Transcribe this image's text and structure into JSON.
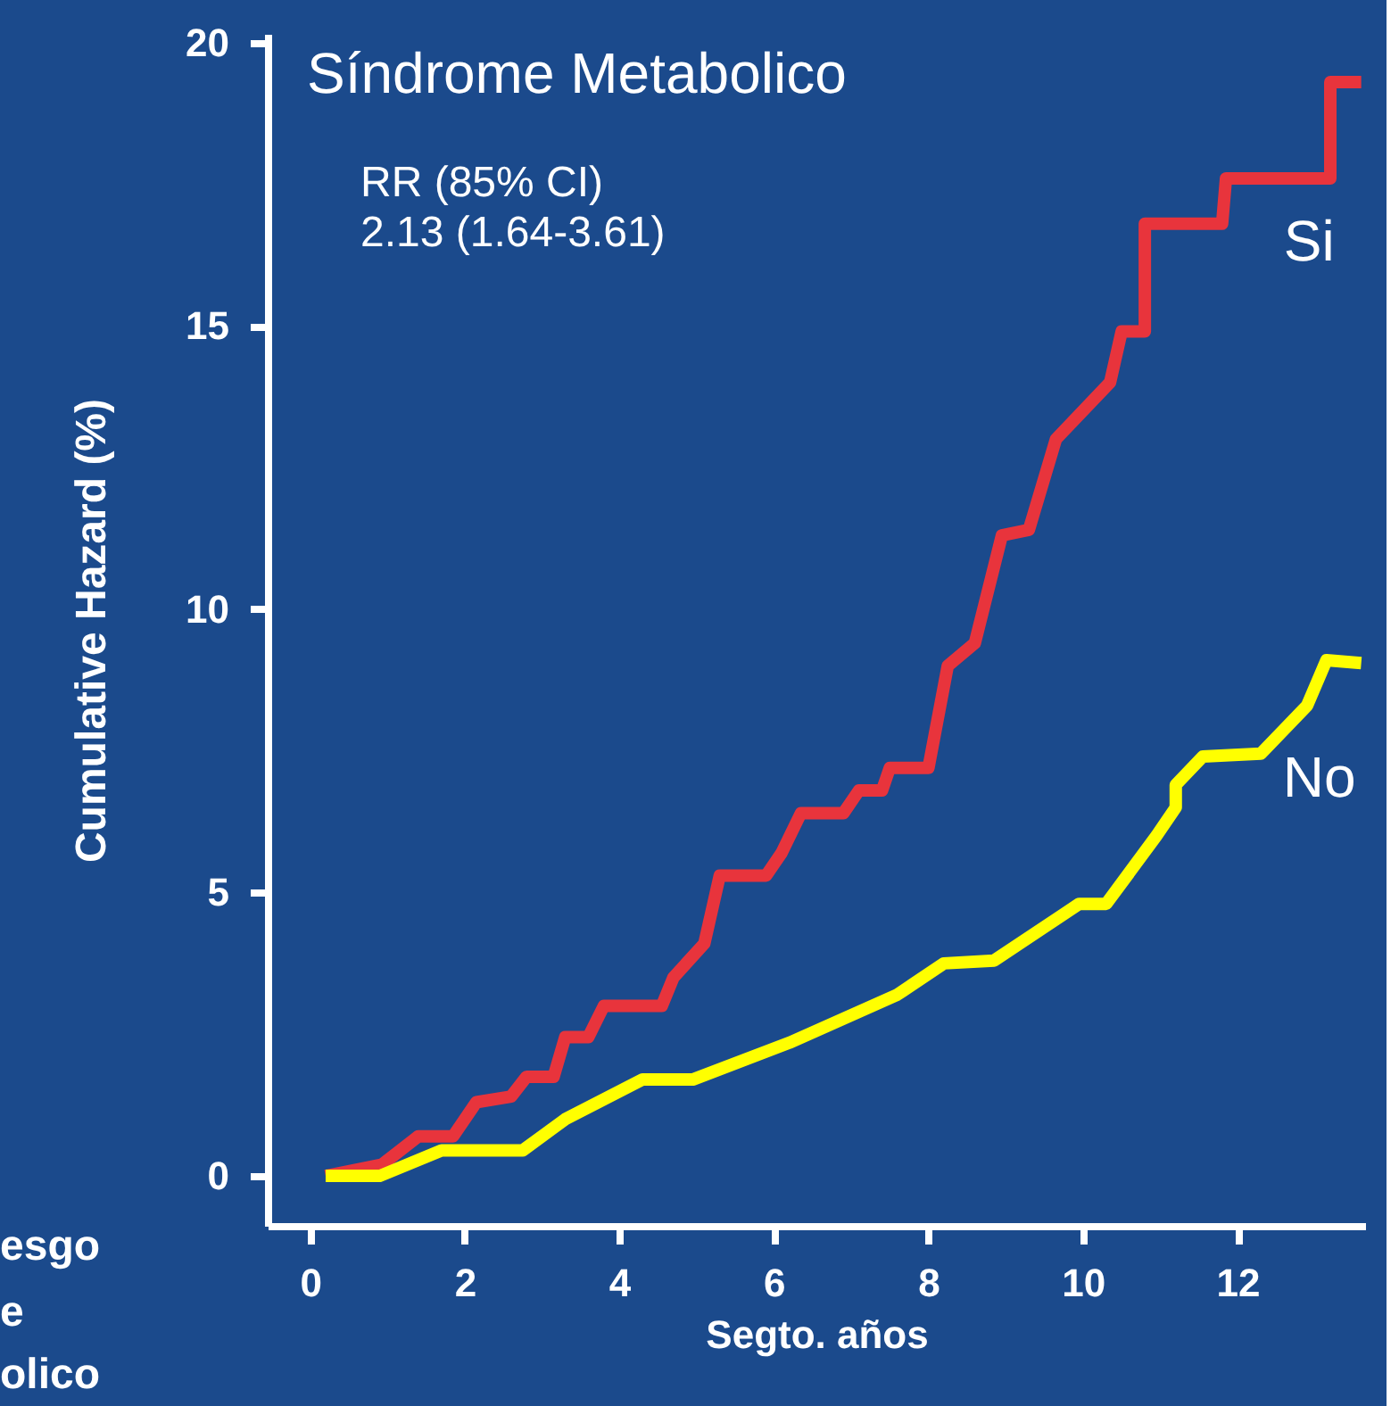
{
  "chart_data": {
    "type": "line",
    "title": "Síndrome Metabolico",
    "xlabel": "Segto. años",
    "ylabel": "Cumulative Hazard (%)",
    "annotations": [
      "RR (85% CI)",
      "2.13 (1.64-3.61)",
      "esgo",
      "e",
      "olico"
    ],
    "xlim": [
      -0.55,
      13.65
    ],
    "xticks": [
      0,
      2,
      4,
      6,
      8,
      10,
      12
    ],
    "ylim": [
      -0.88,
      20.15
    ],
    "yticks": [
      0,
      5,
      10,
      15,
      20
    ],
    "grid": false,
    "marker": "none",
    "line_style": "solid",
    "series": [
      {
        "name": "Si",
        "color": "#e8343c",
        "x": [
          0.2,
          0.93,
          1.4,
          1.85,
          2.15,
          2.6,
          2.8,
          3.15,
          3.3,
          3.6,
          3.8,
          4.55,
          4.7,
          5.1,
          5.3,
          5.9,
          6.1,
          6.35,
          6.9,
          7.1,
          7.4,
          7.5,
          8.0,
          8.25,
          8.6,
          8.95,
          9.3,
          9.65,
          10.35,
          10.5,
          10.8,
          10.8,
          11.8,
          11.85,
          13.2,
          13.2,
          13.6
        ],
        "values": [
          0,
          0.2,
          0.7,
          0.7,
          1.3,
          1.4,
          1.75,
          1.75,
          2.45,
          2.45,
          3.0,
          3.0,
          3.5,
          4.1,
          5.3,
          5.3,
          5.7,
          6.4,
          6.4,
          6.8,
          6.8,
          7.2,
          7.2,
          9.0,
          9.4,
          11.3,
          11.4,
          13.0,
          14.0,
          14.9,
          14.9,
          16.8,
          16.8,
          17.6,
          17.6,
          19.3,
          19.3
        ]
      },
      {
        "name": "No",
        "color": "#ffff00",
        "x": [
          0.2,
          0.9,
          1.7,
          2.75,
          3.3,
          4.3,
          4.95,
          6.2,
          7.6,
          8.2,
          8.85,
          9.95,
          10.3,
          10.95,
          11.2,
          11.2,
          11.55,
          12.3,
          12.9,
          13.15,
          13.6
        ],
        "values": [
          0,
          0,
          0.45,
          0.45,
          1.0,
          1.7,
          1.7,
          2.35,
          3.2,
          3.75,
          3.8,
          4.8,
          4.8,
          6.0,
          6.5,
          6.9,
          7.4,
          7.45,
          8.3,
          9.1,
          9.05
        ]
      }
    ]
  }
}
